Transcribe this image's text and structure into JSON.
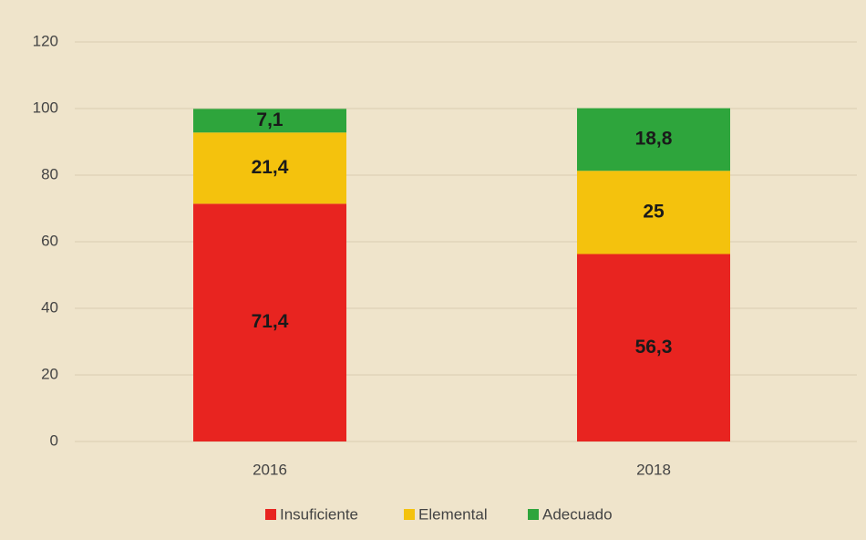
{
  "chart_data": {
    "type": "stacked_bar",
    "categories": [
      "2016",
      "2018"
    ],
    "series": [
      {
        "name": "Insuficiente",
        "color": "#e82420",
        "values": [
          71.4,
          56.3
        ],
        "value_labels": [
          "71,4",
          "56,3"
        ]
      },
      {
        "name": "Elemental",
        "color": "#f4c20d",
        "values": [
          21.4,
          25
        ],
        "value_labels": [
          "21,4",
          "25"
        ]
      },
      {
        "name": "Adecuado",
        "color": "#2ea53c",
        "values": [
          7.1,
          18.8
        ],
        "value_labels": [
          "7,1",
          "18,8"
        ]
      }
    ],
    "ylim": [
      0,
      120
    ],
    "yticks": [
      0,
      20,
      40,
      60,
      80,
      100,
      120
    ],
    "grid": true,
    "legend": "bottom"
  }
}
